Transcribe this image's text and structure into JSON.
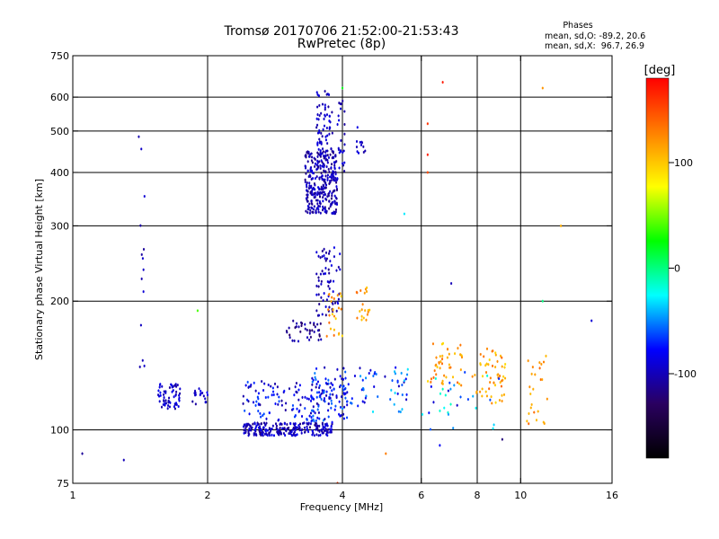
{
  "chart_data": {
    "type": "scatter",
    "title": "Tromsø 20170706 21:52:00-21:53:43",
    "subtitle": "RwPretec (8p)",
    "xlabel": "Frequency [MHz]",
    "ylabel": "Stationary phase Virtual Height [km]",
    "x_scale": "log2",
    "y_scale": "log",
    "xlim": [
      1,
      16
    ],
    "ylim": [
      75,
      750
    ],
    "x_ticks": [
      1,
      2,
      4,
      6,
      8,
      10,
      16
    ],
    "x_tick_labels": [
      "1",
      "2",
      "4",
      "6",
      "8",
      "10",
      "16"
    ],
    "y_ticks": [
      75,
      100,
      200,
      300,
      400,
      500,
      600,
      750
    ],
    "y_tick_labels": [
      "75",
      "100",
      "200",
      "300",
      "400",
      "500",
      "600",
      "750"
    ],
    "grid": true,
    "phases_legend": {
      "title": "Phases",
      "line_o": "mean, sd,O: -89.2, 20.6",
      "line_x": "mean, sd,X:  96.7, 26.9"
    },
    "colorbar": {
      "unit": "[deg]",
      "range": [
        -180,
        180
      ],
      "ticks": [
        100,
        0,
        -100
      ],
      "tick_labels": [
        "100",
        "0",
        "-100"
      ],
      "colors": [
        "#000000",
        "#2a0060",
        "#0000ff",
        "#00ffff",
        "#00ff00",
        "#ffff00",
        "#ff8000",
        "#ff0000"
      ]
    },
    "clusters": [
      {
        "f": [
          1.55,
          1.75
        ],
        "h": [
          112,
          128
        ],
        "ph": [
          -110,
          -80
        ],
        "n": 60
      },
      {
        "f": [
          1.85,
          2.0
        ],
        "h": [
          113,
          125
        ],
        "ph": [
          -110,
          -80
        ],
        "n": 18
      },
      {
        "f": [
          2.4,
          3.8
        ],
        "h": [
          97,
          104
        ],
        "ph": [
          -120,
          -80
        ],
        "n": 230
      },
      {
        "f": [
          2.4,
          3.5
        ],
        "h": [
          105,
          130
        ],
        "ph": [
          -110,
          -60
        ],
        "n": 90
      },
      {
        "f": [
          3.4,
          4.1
        ],
        "h": [
          104,
          140
        ],
        "ph": [
          -110,
          -50
        ],
        "n": 110
      },
      {
        "f": [
          3.3,
          3.9
        ],
        "h": [
          320,
          450
        ],
        "ph": [
          -120,
          -85
        ],
        "n": 320
      },
      {
        "f": [
          3.5,
          3.8
        ],
        "h": [
          450,
          620
        ],
        "ph": [
          -110,
          -85
        ],
        "n": 60
      },
      {
        "f": [
          3.9,
          4.05
        ],
        "h": [
          400,
          610
        ],
        "ph": [
          -110,
          -85
        ],
        "n": 25
      },
      {
        "f": [
          4.3,
          4.5
        ],
        "h": [
          440,
          520
        ],
        "ph": [
          -110,
          -85
        ],
        "n": 12
      },
      {
        "f": [
          3.5,
          3.95
        ],
        "h": [
          185,
          270
        ],
        "ph": [
          -115,
          -85
        ],
        "n": 70
      },
      {
        "f": [
          3.0,
          3.6
        ],
        "h": [
          160,
          180
        ],
        "ph": [
          -130,
          -95
        ],
        "n": 40
      },
      {
        "f": [
          3.6,
          4.0
        ],
        "h": [
          165,
          210
        ],
        "ph": [
          90,
          140
        ],
        "n": 25
      },
      {
        "f": [
          4.3,
          4.6
        ],
        "h": [
          180,
          215
        ],
        "ph": [
          100,
          140
        ],
        "n": 20
      },
      {
        "f": [
          4.0,
          5.6
        ],
        "h": [
          110,
          140
        ],
        "ph": [
          -100,
          -30
        ],
        "n": 60
      },
      {
        "f": [
          6.2,
          7.4
        ],
        "h": [
          125,
          160
        ],
        "ph": [
          90,
          140
        ],
        "n": 45
      },
      {
        "f": [
          7.8,
          9.3
        ],
        "h": [
          115,
          155
        ],
        "ph": [
          90,
          140
        ],
        "n": 55
      },
      {
        "f": [
          10.3,
          11.5
        ],
        "h": [
          103,
          150
        ],
        "ph": [
          100,
          140
        ],
        "n": 25
      },
      {
        "f": [
          6.0,
          9.0
        ],
        "h": [
          100,
          140
        ],
        "ph": [
          -100,
          -10
        ],
        "n": 30
      },
      {
        "f": [
          1.4,
          1.45
        ],
        "h": [
          140,
          520
        ],
        "ph": [
          -110,
          -90
        ],
        "n": 14
      }
    ],
    "outliers": [
      {
        "f": 6.7,
        "h": 650,
        "ph": 170
      },
      {
        "f": 6.2,
        "h": 520,
        "ph": 160
      },
      {
        "f": 6.2,
        "h": 400,
        "ph": 150
      },
      {
        "f": 6.2,
        "h": 440,
        "ph": 170
      },
      {
        "f": 11.2,
        "h": 630,
        "ph": 120
      },
      {
        "f": 12.3,
        "h": 300,
        "ph": 110
      },
      {
        "f": 14.4,
        "h": 180,
        "ph": -90
      },
      {
        "f": 1.3,
        "h": 85,
        "ph": -100
      },
      {
        "f": 1.05,
        "h": 88,
        "ph": -110
      },
      {
        "f": 1.9,
        "h": 190,
        "ph": 40
      },
      {
        "f": 3.9,
        "h": 75,
        "ph": 160
      },
      {
        "f": 5.0,
        "h": 88,
        "ph": 130
      },
      {
        "f": 4.0,
        "h": 630,
        "ph": 20
      },
      {
        "f": 5.5,
        "h": 320,
        "ph": -30
      },
      {
        "f": 7.0,
        "h": 220,
        "ph": -100
      },
      {
        "f": 11.2,
        "h": 200,
        "ph": 0
      },
      {
        "f": 6.6,
        "h": 92,
        "ph": -80
      },
      {
        "f": 9.1,
        "h": 95,
        "ph": -120
      }
    ]
  }
}
